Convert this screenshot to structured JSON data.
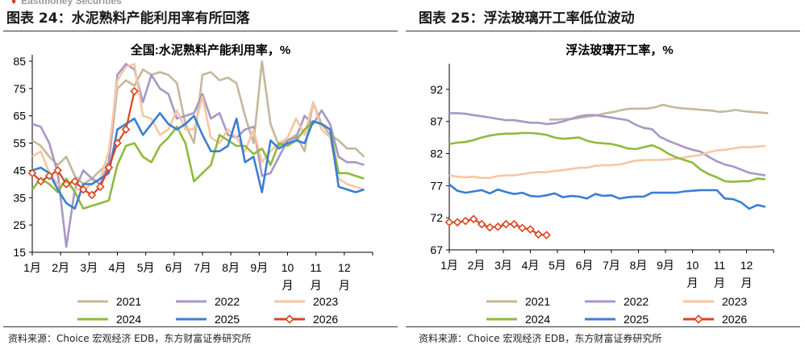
{
  "header": {
    "brand": "Eastmoney Securities"
  },
  "legend_names": [
    "2021",
    "2022",
    "2023",
    "2024",
    "2025",
    "2026"
  ],
  "series_colors": [
    "#c4b89b",
    "#a797c6",
    "#f7c6a3",
    "#8fb93d",
    "#3a7fd1",
    "#d8451f"
  ],
  "chart_data": [
    {
      "type": "line",
      "figure_title": "图表 24：水泥熟料产能利用率有所回落",
      "title": "全国:水泥熟料产能利用率，%",
      "x_ticks": [
        "1月",
        "2月",
        "3月",
        "4月",
        "5月",
        "6月",
        "7月",
        "8月",
        "9月",
        "10",
        "11",
        "12"
      ],
      "x_sub_ticks": [
        "月",
        "月",
        "月"
      ],
      "ylim": [
        15,
        85
      ],
      "yticks": [
        15,
        25,
        35,
        45,
        55,
        65,
        75,
        85
      ],
      "grid": false,
      "legend_placement": "bottom",
      "source": "资料来源：Choice 宏观经济 EDB，东方财富证券研究所",
      "series": [
        {
          "name": "2021",
          "x": [
            1.0,
            1.3,
            1.6,
            1.9,
            2.2,
            2.5,
            2.8,
            3.1,
            3.4,
            3.7,
            4.0,
            4.3,
            4.6,
            4.9,
            5.2,
            5.5,
            5.8,
            6.1,
            6.4,
            6.7,
            7.0,
            7.3,
            7.6,
            7.9,
            8.2,
            8.5,
            8.8,
            9.1,
            9.4,
            9.7,
            10.0,
            10.3,
            10.6,
            10.9,
            11.2,
            11.5,
            11.8,
            12.1,
            12.4,
            12.7
          ],
          "y": [
            56,
            54,
            50,
            47,
            50,
            43,
            40,
            42,
            45,
            48,
            75,
            78,
            76,
            82,
            80,
            81,
            80,
            77,
            62,
            55,
            80,
            81,
            78,
            79,
            77,
            65,
            55,
            85,
            62,
            54,
            56,
            58,
            52,
            70,
            62,
            58,
            56,
            53,
            53,
            50
          ]
        },
        {
          "name": "2022",
          "x": [
            1.0,
            1.3,
            1.6,
            1.9,
            2.2,
            2.5,
            2.8,
            3.1,
            3.4,
            3.7,
            4.0,
            4.3,
            4.6,
            4.9,
            5.2,
            5.5,
            5.8,
            6.1,
            6.4,
            6.7,
            7.0,
            7.3,
            7.6,
            7.9,
            8.2,
            8.5,
            8.8,
            9.1,
            9.4,
            9.7,
            10.0,
            10.3,
            10.6,
            10.9,
            11.2,
            11.5,
            11.8,
            12.1,
            12.4,
            12.7
          ],
          "y": [
            62,
            61,
            55,
            44,
            17,
            38,
            45,
            42,
            40,
            48,
            80,
            84,
            82,
            70,
            80,
            75,
            73,
            64,
            65,
            66,
            73,
            64,
            66,
            58,
            57,
            60,
            61,
            43,
            44,
            50,
            56,
            57,
            65,
            62,
            67,
            62,
            50,
            48,
            48,
            47
          ]
        },
        {
          "name": "2023",
          "x": [
            1.0,
            1.3,
            1.6,
            1.9,
            2.2,
            2.5,
            2.8,
            3.1,
            3.4,
            3.7,
            4.0,
            4.3,
            4.6,
            4.9,
            5.2,
            5.5,
            5.8,
            6.1,
            6.4,
            6.7,
            7.0,
            7.3,
            7.6,
            7.9,
            8.2,
            8.5,
            8.8,
            9.1,
            9.4,
            9.7,
            10.0,
            10.3,
            10.6,
            10.9,
            11.2,
            11.5,
            11.8,
            12.1,
            12.4,
            12.7
          ],
          "y": [
            50,
            52,
            44,
            40,
            40,
            38,
            38,
            40,
            42,
            52,
            78,
            83,
            84,
            65,
            64,
            58,
            60,
            67,
            60,
            60,
            72,
            57,
            55,
            60,
            57,
            52,
            60,
            48,
            52,
            55,
            57,
            64,
            58,
            70,
            60,
            57,
            42,
            40,
            39,
            38
          ]
        },
        {
          "name": "2024",
          "x": [
            1.0,
            1.3,
            1.6,
            1.9,
            2.2,
            2.5,
            2.8,
            3.1,
            3.4,
            3.7,
            4.0,
            4.3,
            4.6,
            4.9,
            5.2,
            5.5,
            5.8,
            6.1,
            6.4,
            6.7,
            7.0,
            7.3,
            7.6,
            7.9,
            8.2,
            8.5,
            8.8,
            9.1,
            9.4,
            9.7,
            10.0,
            10.3,
            10.6,
            10.9,
            11.2,
            11.5,
            11.8,
            12.1,
            12.4,
            12.7
          ],
          "y": [
            38,
            42,
            40,
            37,
            42,
            37,
            31,
            32,
            33,
            34,
            47,
            54,
            55,
            50,
            48,
            54,
            57,
            61,
            55,
            41,
            44,
            47,
            58,
            56,
            54,
            54,
            51,
            53,
            47,
            55,
            54,
            56,
            60,
            63,
            62,
            60,
            44,
            44,
            43,
            42
          ]
        },
        {
          "name": "2025",
          "x": [
            1.0,
            1.3,
            1.6,
            1.9,
            2.2,
            2.5,
            2.8,
            3.1,
            3.4,
            3.7,
            4.0,
            4.3,
            4.6,
            4.9,
            5.2,
            5.5,
            5.8,
            6.1,
            6.4,
            6.7,
            7.0,
            7.3,
            7.6,
            7.9,
            8.2,
            8.5,
            8.8,
            9.1,
            9.4,
            9.7,
            10.0,
            10.3,
            10.6,
            10.9,
            11.2,
            11.5,
            11.8,
            12.1,
            12.4,
            12.7
          ],
          "y": [
            45,
            46,
            44,
            38,
            33,
            31,
            40,
            40,
            42,
            44,
            60,
            62,
            64,
            58,
            62,
            66,
            62,
            60,
            62,
            65,
            58,
            52,
            52,
            54,
            64,
            48,
            50,
            37,
            56,
            53,
            55,
            56,
            55,
            63,
            62,
            60,
            39,
            38,
            37,
            38
          ]
        },
        {
          "name": "2026",
          "x": [
            1.0,
            1.3,
            1.6,
            1.9,
            2.2,
            2.5,
            2.8,
            3.1,
            3.4,
            3.7,
            4.0,
            4.3,
            4.6
          ],
          "y": [
            44,
            41,
            43,
            45,
            40,
            41,
            38,
            36,
            39,
            46,
            55,
            60,
            74
          ]
        }
      ]
    },
    {
      "type": "line",
      "figure_title": "图表 25：浮法玻璃开工率低位波动",
      "title": "浮法玻璃开工率，%",
      "x_ticks": [
        "1月",
        "2月",
        "3月",
        "4月",
        "5月",
        "6月",
        "7月",
        "8月",
        "9月",
        "10",
        "11",
        "12"
      ],
      "x_sub_ticks": [
        "月",
        "月",
        "月"
      ],
      "ylim": [
        67,
        95
      ],
      "yticks": [
        67,
        72,
        77,
        82,
        87,
        92
      ],
      "grid": false,
      "legend_placement": "bottom",
      "source": "资料来源：Choice 宏观经济 EDB，东方财富证券研究所",
      "series": [
        {
          "name": "2021",
          "x": [
            4.7,
            5.0,
            5.3,
            5.6,
            5.9,
            6.2,
            6.5,
            6.8,
            7.1,
            7.4,
            7.7,
            8.0,
            8.3,
            8.6,
            8.9,
            9.2,
            9.5,
            9.8,
            10.1,
            10.4,
            10.7,
            11.0,
            11.3,
            11.6,
            11.9,
            12.2,
            12.5,
            12.8
          ],
          "y": [
            87.3,
            87.3,
            87.4,
            87.4,
            87.6,
            87.8,
            88.0,
            88.3,
            88.5,
            88.8,
            89.0,
            89.0,
            89.0,
            89.2,
            89.6,
            89.3,
            89.1,
            89.0,
            88.9,
            88.8,
            88.7,
            88.5,
            88.6,
            88.8,
            88.6,
            88.5,
            88.4,
            88.3
          ]
        },
        {
          "name": "2022",
          "x": [
            1.0,
            1.3,
            1.6,
            1.9,
            2.2,
            2.5,
            2.8,
            3.1,
            3.4,
            3.7,
            4.0,
            4.3,
            4.6,
            4.9,
            5.2,
            5.5,
            5.8,
            6.1,
            6.4,
            6.7,
            7.0,
            7.3,
            7.6,
            7.9,
            8.2,
            8.5,
            8.8,
            9.1,
            9.4,
            9.7,
            10.0,
            10.3,
            10.6,
            10.9,
            11.2,
            11.5,
            11.8,
            12.1,
            12.4,
            12.7
          ],
          "y": [
            88.3,
            88.3,
            88.2,
            88.0,
            87.8,
            87.6,
            87.4,
            87.2,
            87.2,
            87.0,
            86.8,
            86.8,
            86.6,
            86.7,
            87.0,
            87.4,
            87.8,
            88.0,
            88.0,
            87.8,
            87.6,
            87.4,
            87.2,
            86.5,
            86.0,
            85.8,
            84.6,
            84.0,
            83.5,
            83.0,
            82.6,
            82.3,
            81.5,
            80.8,
            80.3,
            80.0,
            79.5,
            79.0,
            78.8,
            78.6
          ]
        },
        {
          "name": "2023",
          "x": [
            1.0,
            1.3,
            1.6,
            1.9,
            2.2,
            2.5,
            2.8,
            3.1,
            3.4,
            3.7,
            4.0,
            4.3,
            4.6,
            4.9,
            5.2,
            5.5,
            5.8,
            6.1,
            6.4,
            6.7,
            7.0,
            7.3,
            7.6,
            7.9,
            8.2,
            8.5,
            8.8,
            9.1,
            9.4,
            9.7,
            10.0,
            10.3,
            10.6,
            10.9,
            11.2,
            11.5,
            11.8,
            12.1,
            12.4,
            12.7
          ],
          "y": [
            78.6,
            78.4,
            78.3,
            78.4,
            78.2,
            78.2,
            78.5,
            78.6,
            78.6,
            78.8,
            79.0,
            79.1,
            79.1,
            79.3,
            79.4,
            79.6,
            79.8,
            79.8,
            80.1,
            80.2,
            80.2,
            80.3,
            80.6,
            80.9,
            81.0,
            81.0,
            81.0,
            81.1,
            81.2,
            81.4,
            81.6,
            81.8,
            82.2,
            82.5,
            82.6,
            82.8,
            83.0,
            83.0,
            83.1,
            83.2
          ]
        },
        {
          "name": "2024",
          "x": [
            1.0,
            1.3,
            1.6,
            1.9,
            2.2,
            2.5,
            2.8,
            3.1,
            3.4,
            3.7,
            4.0,
            4.3,
            4.6,
            4.9,
            5.2,
            5.5,
            5.8,
            6.1,
            6.4,
            6.7,
            7.0,
            7.3,
            7.6,
            7.9,
            8.2,
            8.5,
            8.8,
            9.1,
            9.4,
            9.7,
            10.0,
            10.3,
            10.6,
            10.9,
            11.2,
            11.5,
            11.8,
            12.1,
            12.4,
            12.7
          ],
          "y": [
            83.5,
            83.7,
            83.8,
            84.1,
            84.5,
            84.8,
            85.0,
            85.1,
            85.1,
            85.2,
            85.2,
            85.1,
            84.9,
            84.5,
            84.3,
            84.4,
            84.5,
            84.0,
            83.7,
            83.6,
            83.5,
            83.2,
            82.8,
            82.7,
            83.0,
            83.3,
            82.8,
            82.0,
            81.4,
            81.0,
            80.6,
            79.5,
            78.8,
            78.3,
            77.7,
            77.6,
            77.7,
            77.7,
            78.1,
            78.0
          ]
        },
        {
          "name": "2025",
          "x": [
            1.0,
            1.3,
            1.6,
            1.9,
            2.2,
            2.5,
            2.8,
            3.1,
            3.4,
            3.7,
            4.0,
            4.3,
            4.6,
            4.9,
            5.2,
            5.5,
            5.8,
            6.1,
            6.4,
            6.7,
            7.0,
            7.3,
            7.6,
            7.9,
            8.2,
            8.5,
            8.8,
            9.1,
            9.4,
            9.7,
            10.0,
            10.3,
            10.6,
            10.9,
            11.2,
            11.5,
            11.8,
            12.1,
            12.4,
            12.7
          ],
          "y": [
            77.2,
            76.2,
            75.9,
            76.1,
            76.3,
            75.8,
            76.4,
            76.0,
            75.7,
            75.9,
            75.4,
            75.3,
            75.5,
            75.8,
            75.2,
            75.4,
            75.3,
            75.0,
            75.7,
            75.4,
            75.5,
            75.0,
            75.2,
            75.3,
            75.3,
            75.9,
            75.9,
            75.9,
            75.9,
            76.1,
            76.2,
            76.3,
            76.3,
            76.3,
            75.0,
            74.9,
            74.4,
            73.4,
            74.0,
            73.7
          ]
        },
        {
          "name": "2026",
          "x": [
            1.0,
            1.3,
            1.6,
            1.9,
            2.2,
            2.5,
            2.8,
            3.1,
            3.4,
            3.7,
            4.0,
            4.3,
            4.6
          ],
          "y": [
            71.3,
            71.3,
            71.5,
            71.8,
            71.0,
            70.5,
            70.6,
            71.0,
            71.0,
            70.4,
            70.2,
            69.4,
            69.3
          ]
        }
      ]
    }
  ]
}
